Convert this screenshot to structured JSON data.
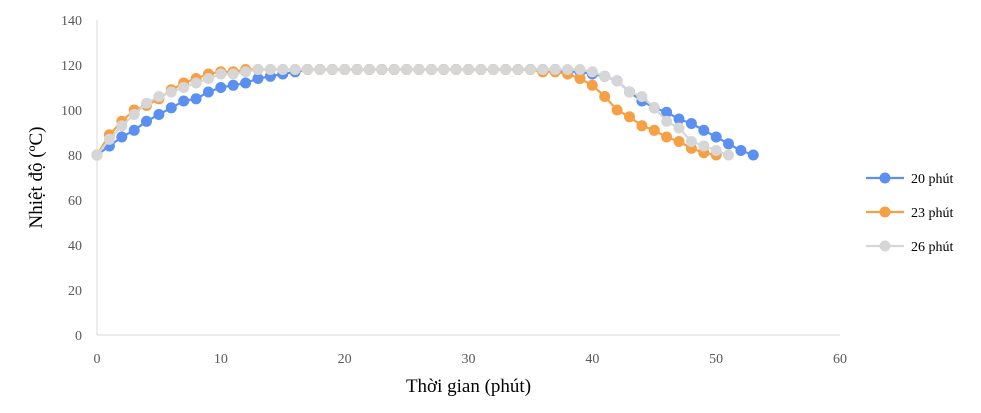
{
  "chart_data": {
    "type": "line",
    "xlabel": "Thời gian (phút)",
    "ylabel": "Nhiệt độ (ºC)",
    "xlim": [
      0,
      60
    ],
    "ylim": [
      0,
      140
    ],
    "xticks": [
      0,
      10,
      20,
      30,
      40,
      50,
      60
    ],
    "yticks": [
      0,
      20,
      40,
      60,
      80,
      100,
      120,
      140
    ],
    "grid": false,
    "legend": "right",
    "series": [
      {
        "name": "20 phút",
        "color": "#5b8ff0",
        "x": [
          0,
          1,
          2,
          3,
          4,
          5,
          6,
          7,
          8,
          9,
          10,
          11,
          12,
          13,
          14,
          15,
          16,
          17,
          18,
          19,
          20,
          21,
          22,
          23,
          24,
          25,
          26,
          27,
          28,
          29,
          30,
          31,
          32,
          33,
          34,
          35,
          36,
          37,
          38,
          39,
          40,
          41,
          42,
          43,
          44,
          45,
          46,
          47,
          48,
          49,
          50,
          51,
          52,
          53
        ],
        "y": [
          80,
          84,
          88,
          91,
          95,
          98,
          101,
          104,
          105,
          108,
          110,
          111,
          112,
          114,
          115,
          116,
          117,
          118,
          118,
          118,
          118,
          118,
          118,
          118,
          118,
          118,
          118,
          118,
          118,
          118,
          118,
          118,
          118,
          118,
          118,
          118,
          118,
          118,
          117,
          117,
          116,
          115,
          113,
          108,
          104,
          101,
          99,
          96,
          94,
          91,
          88,
          85,
          82,
          80
        ]
      },
      {
        "name": "23 phút",
        "color": "#f5a044",
        "x": [
          0,
          1,
          2,
          3,
          4,
          5,
          6,
          7,
          8,
          9,
          10,
          11,
          12,
          13,
          14,
          15,
          16,
          17,
          18,
          19,
          20,
          21,
          22,
          23,
          24,
          25,
          26,
          27,
          28,
          29,
          30,
          31,
          32,
          33,
          34,
          35,
          36,
          37,
          38,
          39,
          40,
          41,
          42,
          43,
          44,
          45,
          46,
          47,
          48,
          49,
          50
        ],
        "y": [
          80,
          89,
          95,
          100,
          102,
          105,
          109,
          112,
          114,
          116,
          117,
          117,
          118,
          118,
          118,
          118,
          118,
          118,
          118,
          118,
          118,
          118,
          118,
          118,
          118,
          118,
          118,
          118,
          118,
          118,
          118,
          118,
          118,
          118,
          118,
          118,
          117,
          117,
          116,
          114,
          111,
          106,
          100,
          97,
          93,
          91,
          88,
          86,
          83,
          81,
          80
        ]
      },
      {
        "name": "26 phút",
        "color": "#d6d6d6",
        "x": [
          0,
          1,
          2,
          3,
          4,
          5,
          6,
          7,
          8,
          9,
          10,
          11,
          12,
          13,
          14,
          15,
          16,
          17,
          18,
          19,
          20,
          21,
          22,
          23,
          24,
          25,
          26,
          27,
          28,
          29,
          30,
          31,
          32,
          33,
          34,
          35,
          36,
          37,
          38,
          39,
          40,
          41,
          42,
          43,
          44,
          45,
          46,
          47,
          48,
          49,
          50,
          51
        ],
        "y": [
          80,
          87,
          93,
          98,
          103,
          106,
          108,
          110,
          112,
          114,
          116,
          116,
          117,
          118,
          118,
          118,
          118,
          118,
          118,
          118,
          118,
          118,
          118,
          118,
          118,
          118,
          118,
          118,
          118,
          118,
          118,
          118,
          118,
          118,
          118,
          118,
          118,
          118,
          118,
          118,
          117,
          115,
          113,
          108,
          106,
          101,
          95,
          92,
          86,
          84,
          82,
          80
        ]
      }
    ]
  }
}
